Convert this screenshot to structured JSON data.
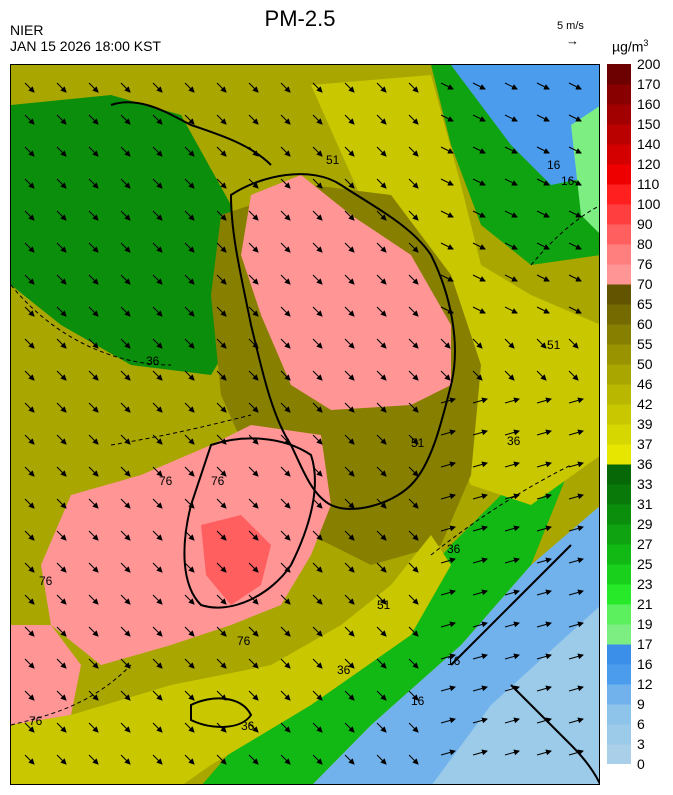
{
  "header": {
    "title": "PM-2.5",
    "agency": "NIER",
    "datetime": "JAN 15 2026 18:00 KST",
    "wind_reference": "5 m/s",
    "wind_reference_arrow": "→",
    "unit": "µg/m",
    "unit_superscript": "3"
  },
  "colorbar": {
    "levels": [
      "0",
      "3",
      "6",
      "9",
      "12",
      "16",
      "17",
      "19",
      "21",
      "23",
      "25",
      "27",
      "29",
      "31",
      "33",
      "36",
      "37",
      "39",
      "42",
      "46",
      "50",
      "55",
      "60",
      "65",
      "70",
      "76",
      "80",
      "90",
      "100",
      "110",
      "120",
      "140",
      "150",
      "160",
      "170",
      "200"
    ],
    "colors": [
      "#a9cfe9",
      "#9ccae9",
      "#8ec4ea",
      "#71b2ec",
      "#4b9ced",
      "#3b8fe9",
      "#7cee82",
      "#5cf05f",
      "#27e829",
      "#19d01c",
      "#12b814",
      "#0fa311",
      "#0c8e0d",
      "#097a0a",
      "#066807",
      "#e6e600",
      "#d6d600",
      "#c8c700",
      "#b9b700",
      "#a9a600",
      "#999300",
      "#877f00",
      "#756a00",
      "#635400",
      "#ff9595",
      "#ff7f7f",
      "#ff5f5f",
      "#ff3f3f",
      "#ff1f1f",
      "#ee0000",
      "#d40000",
      "#bb0000",
      "#a20000",
      "#880000",
      "#6d0000"
    ]
  },
  "map": {
    "contour_labels": [
      "16",
      "36",
      "51",
      "76",
      "51",
      "36",
      "76",
      "76",
      "16",
      "51",
      "36",
      "76",
      "16",
      "36",
      "51",
      "36",
      "76",
      "16"
    ],
    "colors": {
      "clean_blue": "#4b9ced",
      "light_blue": "#8ec4ea",
      "green": "#0fa311",
      "light_green": "#5cf05f",
      "yellow": "#c8c700",
      "olive": "#877f00",
      "dark_olive": "#635400",
      "pink": "#ff9595",
      "red": "#ff5f5f"
    }
  }
}
